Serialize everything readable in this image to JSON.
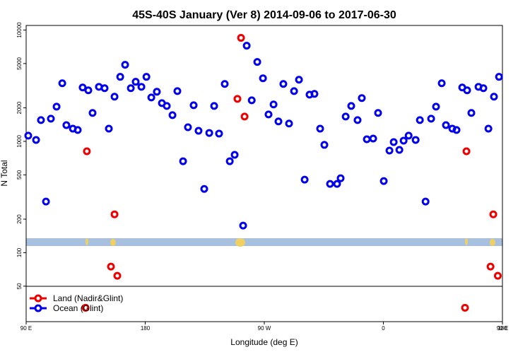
{
  "chart_data": {
    "type": "scatter",
    "title": "45S-40S January (Ver 8)   2014-09-06 to 2017-06-30",
    "x_label": "Longitude (deg E)",
    "y_label": "N Total",
    "xlim": [
      90,
      450
    ],
    "ylim": [
      24,
      11000
    ],
    "y_scale": "log",
    "legend": "lower left",
    "xticks": [
      {
        "value": 90,
        "label": "90 E"
      },
      180,
      {
        "value": 270,
        "label": "90 W"
      },
      {
        "value": 360,
        "label": "0"
      },
      {
        "value": 450,
        "label": "90 E"
      },
      {
        "value": 540,
        "label": "180"
      }
    ],
    "yticks": [
      50,
      100,
      200,
      500,
      1000,
      2000,
      5000,
      10000
    ],
    "series": [
      {
        "name": "Land (Nadir&Glint)",
        "color": "#ee0000",
        "x": [
          135.9,
          156.8,
          154.1,
          158.9,
          134.9,
          252.4,
          249.7,
          255.1,
          422.8,
          443.1,
          441,
          446.5,
          421.7
        ],
        "values": [
          814,
          221,
          75,
          62,
          32,
          8510,
          2410,
          1670,
          814,
          221,
          75,
          62,
          32
        ]
      },
      {
        "name": "Ocean (Glint)",
        "color": "#0000ee",
        "x": [
          91.6,
          97.5,
          101.2,
          105,
          108.7,
          113,
          117.3,
          120.4,
          125.3,
          129,
          132.7,
          137,
          140.2,
          145,
          149.3,
          152.5,
          156.8,
          161.1,
          164.8,
          169.1,
          172.8,
          177.1,
          180.9,
          184.6,
          188.8,
          192.6,
          196.3,
          200.6,
          204.3,
          208.6,
          212.3,
          216.6,
          220.3,
          224.6,
          228.4,
          232.1,
          235.8,
          240.1,
          243.9,
          247.6,
          254,
          256.7,
          260.5,
          264.7,
          269,
          273.2,
          277,
          280.7,
          284.4,
          288.7,
          292.5,
          296.2,
          300.5,
          304.2,
          307.9,
          312.2,
          315.4,
          319.7,
          325,
          327.7,
          331.5,
          335.7,
          340.5,
          343.7,
          347.5,
          352.3,
          356,
          360.3,
          364.6,
          367.8,
          372.1,
          375.3,
          379.1,
          384.4,
          387.6,
          391.9,
          396.1,
          399.8,
          404.1,
          407.3,
          412.1,
          415.3,
          419.6,
          423.3,
          426.5,
          431.9,
          435.6,
          439.4,
          443.6,
          447.4
        ],
        "values": [
          1125,
          1030,
          1552,
          288,
          1600,
          2050,
          3330,
          1400,
          1300,
          1265,
          3050,
          2875,
          1800,
          3090,
          3005,
          1300,
          2520,
          3800,
          4875,
          3005,
          3430,
          3090,
          3800,
          2480,
          2790,
          2205,
          2080,
          1720,
          2830,
          663,
          1340,
          2110,
          1245,
          374,
          1190,
          2080,
          1175,
          3280,
          663,
          757,
          175,
          7240,
          2340,
          5170,
          3690,
          1745,
          2145,
          1510,
          3280,
          1445,
          2830,
          3580,
          453,
          2630,
          2670,
          1300,
          930,
          415,
          415,
          466,
          1670,
          2080,
          1552,
          2450,
          1045,
          1060,
          1800,
          440,
          826,
          985,
          839,
          1015,
          1125,
          1030,
          1552,
          288,
          1600,
          2050,
          3330,
          1400,
          1300,
          1265,
          3050,
          2875,
          1800,
          3090,
          3005,
          1300,
          2520,
          3800
        ]
      }
    ]
  }
}
